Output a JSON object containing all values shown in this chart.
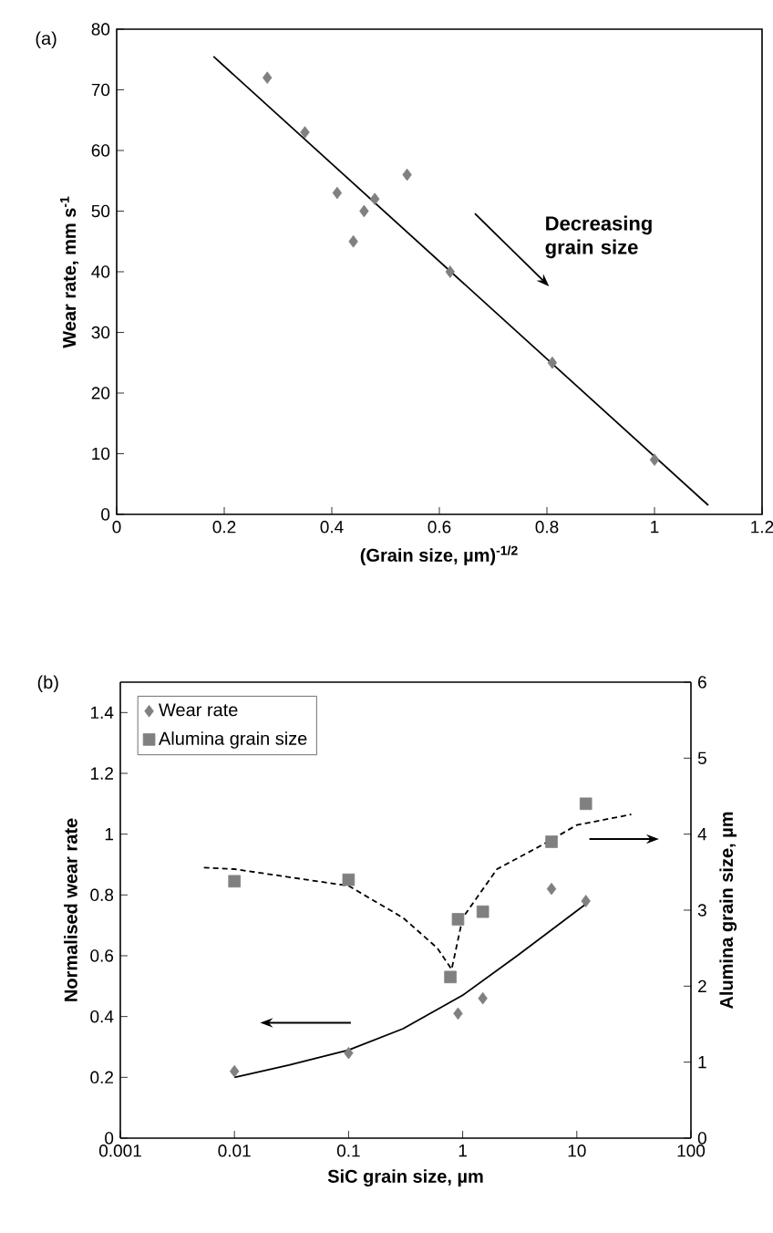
{
  "chart_data": [
    {
      "type": "scatter",
      "xlabel": "(Grain size, µm)$^{-1/2}$",
      "ylabel": "Wear rate, mm s$^{-1}$",
      "annotations": [
        "(a)",
        "Decreasing grain size"
      ],
      "xlim": [
        0,
        1.2
      ],
      "xticks": [
        0,
        0.2,
        0.4,
        0.6,
        0.8,
        1,
        1.2
      ],
      "ylim": [
        0,
        80
      ],
      "yticks": [
        0,
        10,
        20,
        30,
        40,
        50,
        60,
        70,
        80
      ],
      "grid": false,
      "series": [
        {
          "marker": "diamond",
          "color": "#808080",
          "x": [
            0.28,
            0.35,
            0.41,
            0.44,
            0.46,
            0.48,
            0.54,
            0.62,
            0.81,
            1.0
          ],
          "values": [
            72,
            63,
            53,
            45,
            50,
            52,
            56,
            40,
            25,
            9
          ]
        },
        {
          "type": "line",
          "marker": "none",
          "line_style": "solid",
          "color": "#000000",
          "x": [
            0.18,
            1.1
          ],
          "values": [
            75.5,
            1.5
          ]
        }
      ]
    },
    {
      "type": "scatter",
      "xlabel": "SiC grain size, µm",
      "ylabel": "Normalised wear rate",
      "y2label": "Alumina grain size, µm",
      "annotations": [
        "(b)"
      ],
      "log": "x",
      "legend": "top left",
      "grid": false,
      "xlim": [
        0.001,
        100
      ],
      "xticks": [
        0.001,
        0.01,
        0.1,
        1,
        10,
        100
      ],
      "ylim": [
        0,
        1.5
      ],
      "yticks": [
        0,
        0.2,
        0.4,
        0.6,
        0.8,
        1,
        1.2,
        1.4
      ],
      "y2lim": [
        0,
        6
      ],
      "y2ticks": [
        0,
        1,
        2,
        3,
        4,
        5,
        6
      ],
      "series": [
        {
          "name": "Wear rate",
          "marker": "diamond",
          "color": "#808080",
          "x": [
            0.01,
            0.1,
            0.91,
            1.5,
            6,
            12
          ],
          "values": [
            0.22,
            0.28,
            0.41,
            0.46,
            0.82,
            0.78
          ]
        },
        {
          "name": "Alumina grain size",
          "axis": "y2",
          "marker": "square",
          "color": "#808080",
          "x": [
            0.01,
            0.1,
            0.78,
            0.91,
            1.5,
            6,
            12
          ],
          "values": [
            3.38,
            3.4,
            2.12,
            2.88,
            2.98,
            3.9,
            4.4
          ]
        },
        {
          "type": "line",
          "marker": "none",
          "line_style": "solid",
          "color": "#000000",
          "x": [
            0.01,
            0.03,
            0.1,
            0.3,
            1,
            3,
            12
          ],
          "values": [
            0.2,
            0.24,
            0.29,
            0.36,
            0.47,
            0.6,
            0.77
          ]
        },
        {
          "type": "line",
          "axis": "y2",
          "marker": "none",
          "line_style": "dashed",
          "color": "#000000",
          "x": [
            0.0054,
            0.01,
            0.1,
            0.3,
            0.6,
            0.8,
            1,
            2,
            5,
            10,
            30
          ],
          "values": [
            3.56,
            3.54,
            3.32,
            2.9,
            2.5,
            2.22,
            2.9,
            3.54,
            3.86,
            4.12,
            4.26
          ]
        }
      ]
    }
  ]
}
